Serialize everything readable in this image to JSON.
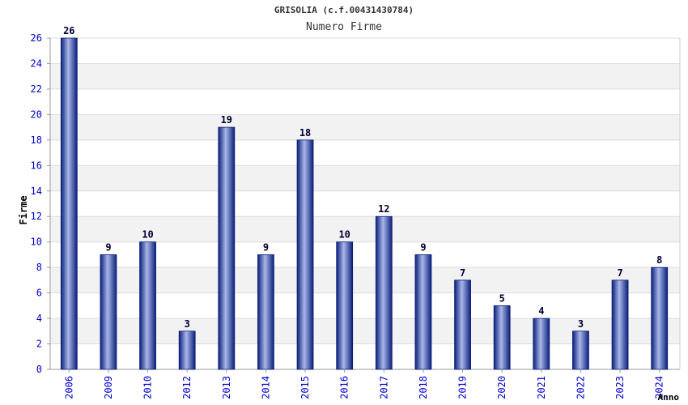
{
  "chart_data": {
    "type": "bar",
    "title": "GRISOLIA (c.f.00431430784)",
    "subtitle": "Numero Firme",
    "xlabel": "Anno",
    "ylabel": "Firme",
    "categories": [
      "2006",
      "2009",
      "2010",
      "2012",
      "2013",
      "2014",
      "2015",
      "2016",
      "2017",
      "2018",
      "2019",
      "2020",
      "2021",
      "2022",
      "2023",
      "2024"
    ],
    "values": [
      26,
      9,
      10,
      3,
      19,
      9,
      18,
      10,
      12,
      9,
      7,
      5,
      4,
      3,
      7,
      8
    ],
    "ylim": [
      0,
      26
    ],
    "ytick_step": 2,
    "grid": true,
    "colors": {
      "bar_dark": "#0b1f7a",
      "bar_light": "#a9b7ea",
      "tick_label": "#0000cc",
      "value_label": "#000033",
      "band_light": "#f2f2f2",
      "band_white": "#ffffff",
      "axis": "#999999"
    }
  }
}
